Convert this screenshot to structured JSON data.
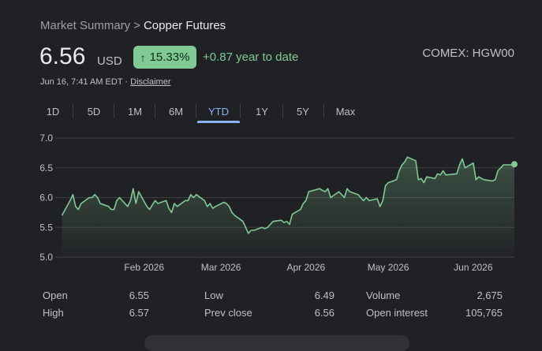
{
  "breadcrumb": {
    "parent": "Market Summary",
    "separator": ">",
    "current": "Copper Futures"
  },
  "quote": {
    "price": "6.56",
    "currency": "USD",
    "percent_change": "15.33%",
    "change_text": "+0.87 year to date",
    "exchange": "COMEX: HGW00",
    "timestamp": "Jun 16, 7:41 AM EDT ·",
    "disclaimer": "Disclaimer"
  },
  "tabs": [
    "1D",
    "5D",
    "1M",
    "6M",
    "YTD",
    "1Y",
    "5Y",
    "Max"
  ],
  "active_tab": "YTD",
  "stats": {
    "open_label": "Open",
    "open_value": "6.55",
    "high_label": "High",
    "high_value": "6.57",
    "low_label": "Low",
    "low_value": "6.49",
    "prev_close_label": "Prev close",
    "prev_close_value": "6.56",
    "volume_label": "Volume",
    "volume_value": "2,675",
    "open_interest_label": "Open interest",
    "open_interest_value": "105,765"
  },
  "colors": {
    "accent": "#81c995",
    "tab_active": "#8ab4f8",
    "background": "#202124"
  },
  "chart_data": {
    "type": "area",
    "y_ticks": [
      "7.0",
      "6.5",
      "6.0",
      "5.5",
      "5.0"
    ],
    "ylim": [
      5.0,
      7.0
    ],
    "x_labels": [
      "Feb 2026",
      "Mar 2026",
      "Apr 2026",
      "May 2026",
      "Jun 2026"
    ],
    "x_label_dates": [
      "2026-02-01",
      "2026-03-01",
      "2026-04-01",
      "2026-05-01",
      "2026-06-01"
    ],
    "xlim": [
      "2026-01-01",
      "2026-06-16"
    ],
    "grid": true,
    "series": [
      {
        "x": [
          "2026-01-02",
          "2026-01-05",
          "2026-01-06",
          "2026-01-07",
          "2026-01-08",
          "2026-01-09",
          "2026-01-12",
          "2026-01-13",
          "2026-01-14",
          "2026-01-15",
          "2026-01-16",
          "2026-01-19",
          "2026-01-20",
          "2026-01-21",
          "2026-01-22",
          "2026-01-23",
          "2026-01-26",
          "2026-01-27",
          "2026-01-28",
          "2026-01-29",
          "2026-01-30",
          "2026-02-02",
          "2026-02-03",
          "2026-02-04",
          "2026-02-05",
          "2026-02-06",
          "2026-02-09",
          "2026-02-10",
          "2026-02-11",
          "2026-02-12",
          "2026-02-13",
          "2026-02-16",
          "2026-02-17",
          "2026-02-18",
          "2026-02-19",
          "2026-02-20",
          "2026-02-23",
          "2026-02-24",
          "2026-02-25",
          "2026-02-26",
          "2026-02-27",
          "2026-03-02",
          "2026-03-03",
          "2026-03-04",
          "2026-03-05",
          "2026-03-06",
          "2026-03-09",
          "2026-03-10",
          "2026-03-11",
          "2026-03-12",
          "2026-03-13",
          "2026-03-16",
          "2026-03-17",
          "2026-03-18",
          "2026-03-19",
          "2026-03-20",
          "2026-03-23",
          "2026-03-24",
          "2026-03-25",
          "2026-03-26",
          "2026-03-27",
          "2026-03-30",
          "2026-03-31",
          "2026-04-01",
          "2026-04-02",
          "2026-04-06",
          "2026-04-07",
          "2026-04-08",
          "2026-04-09",
          "2026-04-10",
          "2026-04-13",
          "2026-04-14",
          "2026-04-15",
          "2026-04-16",
          "2026-04-17",
          "2026-04-20",
          "2026-04-21",
          "2026-04-22",
          "2026-04-23",
          "2026-04-24",
          "2026-04-27",
          "2026-04-28",
          "2026-04-29",
          "2026-04-30",
          "2026-05-01",
          "2026-05-04",
          "2026-05-05",
          "2026-05-06",
          "2026-05-07",
          "2026-05-08",
          "2026-05-11",
          "2026-05-12",
          "2026-05-13",
          "2026-05-14",
          "2026-05-15",
          "2026-05-18",
          "2026-05-19",
          "2026-05-20",
          "2026-05-21",
          "2026-05-22",
          "2026-05-26",
          "2026-05-27",
          "2026-05-28",
          "2026-05-29",
          "2026-06-01",
          "2026-06-02",
          "2026-06-03",
          "2026-06-04",
          "2026-06-05",
          "2026-06-08",
          "2026-06-09",
          "2026-06-10",
          "2026-06-11",
          "2026-06-12",
          "2026-06-15",
          "2026-06-16"
        ],
        "values": [
          5.7,
          5.95,
          6.05,
          5.85,
          5.8,
          5.9,
          6.0,
          6.0,
          6.05,
          6.0,
          5.9,
          5.85,
          5.8,
          5.8,
          5.95,
          6.0,
          5.85,
          5.95,
          6.15,
          5.9,
          6.1,
          5.85,
          5.8,
          5.88,
          5.95,
          5.9,
          5.95,
          5.82,
          5.75,
          5.9,
          5.85,
          5.95,
          5.95,
          6.05,
          6.0,
          6.05,
          5.95,
          5.85,
          5.9,
          5.82,
          5.85,
          5.92,
          5.9,
          5.85,
          5.75,
          5.7,
          5.6,
          5.5,
          5.4,
          5.45,
          5.45,
          5.5,
          5.48,
          5.5,
          5.55,
          5.6,
          5.62,
          5.58,
          5.6,
          5.55,
          5.72,
          5.8,
          5.9,
          5.95,
          6.1,
          6.15,
          6.12,
          6.1,
          6.15,
          6.0,
          6.1,
          6.05,
          6.0,
          6.15,
          6.1,
          6.05,
          6.0,
          5.95,
          6.0,
          5.95,
          5.98,
          5.85,
          5.95,
          6.2,
          6.25,
          6.3,
          6.45,
          6.55,
          6.6,
          6.68,
          6.62,
          6.3,
          6.32,
          6.25,
          6.35,
          6.32,
          6.4,
          6.38,
          6.45,
          6.38,
          6.4,
          6.55,
          6.65,
          6.5,
          6.58,
          6.3,
          6.35,
          6.32,
          6.3,
          6.28,
          6.3,
          6.45,
          6.5,
          6.55,
          6.55,
          6.56
        ]
      }
    ]
  }
}
